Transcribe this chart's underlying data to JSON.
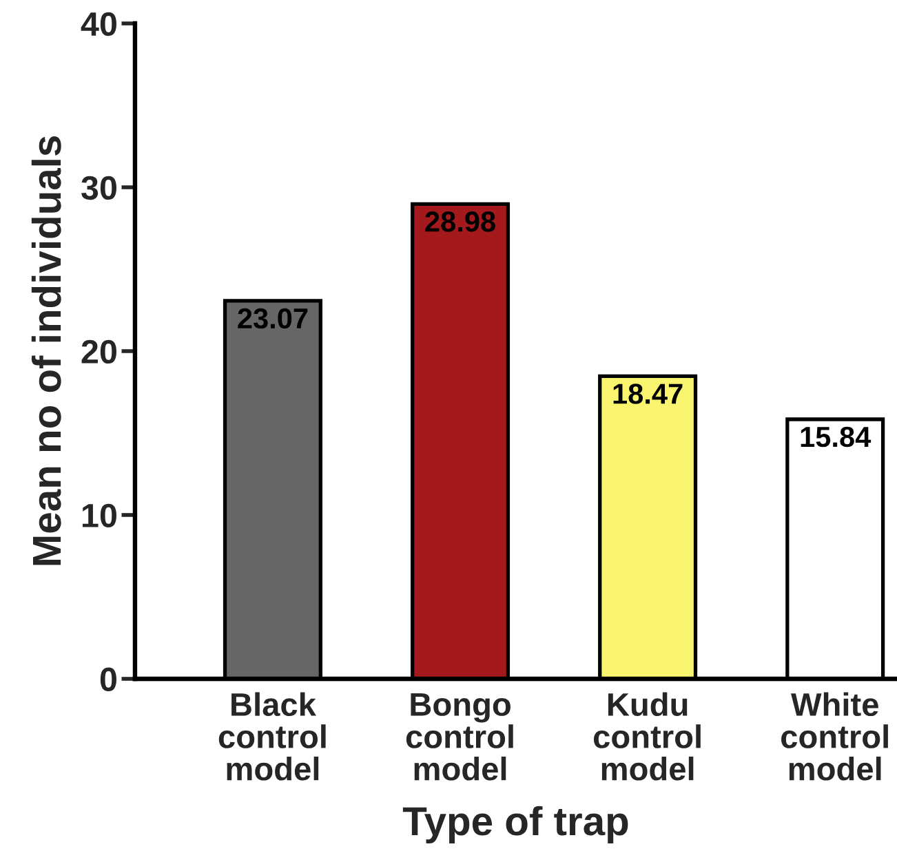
{
  "chart_data": {
    "type": "bar",
    "xlabel": "Type of trap",
    "ylabel": "Mean no of individuals",
    "categories": [
      "Black control model",
      "Bongo control model",
      "Kudu control model",
      "White control model"
    ],
    "values": [
      23.07,
      28.98,
      18.47,
      15.84
    ],
    "colors": [
      "#666666",
      "#a3191c",
      "#f9f56f",
      "#ffffff"
    ],
    "ylim": [
      0,
      40
    ],
    "yticks": [
      0,
      10,
      20,
      30,
      40
    ],
    "data_labels": true
  }
}
